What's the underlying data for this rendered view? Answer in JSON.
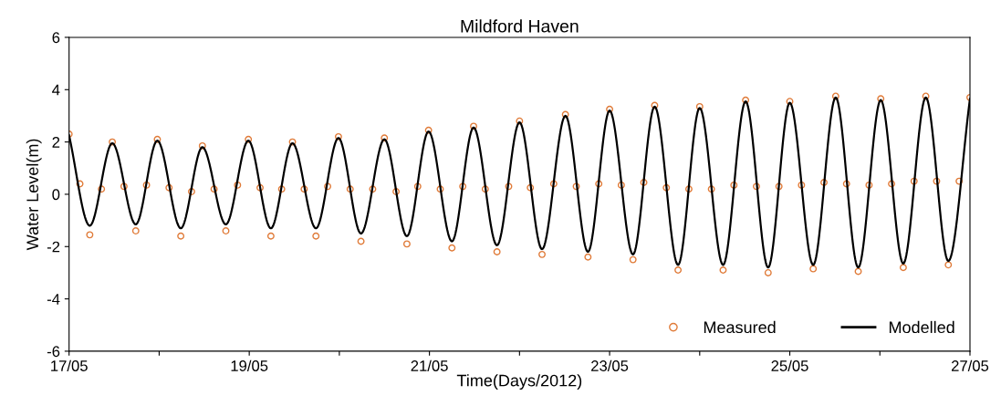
{
  "chart_data": {
    "type": "scatter",
    "title": "Mildford Haven",
    "xlabel": "Time(Days/2012)",
    "ylabel": "Water Level(m)",
    "xlim": [
      "2012-05-17",
      "2012-05-27"
    ],
    "xticks": [
      {
        "value": "2012-05-17",
        "label": "17/05"
      },
      {
        "value": "2012-05-18",
        "label": null
      },
      {
        "value": "2012-05-19",
        "label": "19/05"
      },
      {
        "value": "2012-05-20",
        "label": null
      },
      {
        "value": "2012-05-21",
        "label": "21/05"
      },
      {
        "value": "2012-05-22",
        "label": null
      },
      {
        "value": "2012-05-23",
        "label": "23/05"
      },
      {
        "value": "2012-05-24",
        "label": null
      },
      {
        "value": "2012-05-25",
        "label": "25/05"
      },
      {
        "value": "2012-05-26",
        "label": null
      },
      {
        "value": "2012-05-27",
        "label": "27/05"
      }
    ],
    "ylim": [
      -6,
      6
    ],
    "yticks": [
      -6,
      -4,
      -2,
      0,
      2,
      4,
      6
    ],
    "grid": false,
    "legend": "bottom right",
    "series": [
      {
        "name": "Measured",
        "marker": "circle",
        "color": "#e07b39",
        "x": [
          "2012-05-17T00:00",
          "2012-05-17T02:53",
          "2012-05-17T05:31",
          "2012-05-17T08:38",
          "2012-05-17T11:31",
          "2012-05-17T14:38",
          "2012-05-17T17:46",
          "2012-05-17T20:38",
          "2012-05-17T23:31",
          "2012-05-18T02:38",
          "2012-05-18T05:46",
          "2012-05-18T08:38",
          "2012-05-18T11:31",
          "2012-05-18T14:38",
          "2012-05-18T17:46",
          "2012-05-18T20:53",
          "2012-05-18T23:46",
          "2012-05-19T02:53",
          "2012-05-19T05:46",
          "2012-05-19T08:38",
          "2012-05-19T11:31",
          "2012-05-19T14:38",
          "2012-05-19T17:46",
          "2012-05-19T20:53",
          "2012-05-19T23:46",
          "2012-05-20T02:53",
          "2012-05-20T05:46",
          "2012-05-20T08:53",
          "2012-05-20T12:00",
          "2012-05-20T15:07",
          "2012-05-20T18:00",
          "2012-05-20T20:53",
          "2012-05-20T23:46",
          "2012-05-21T02:53",
          "2012-05-21T06:00",
          "2012-05-21T08:53",
          "2012-05-21T11:46",
          "2012-05-21T14:53",
          "2012-05-21T18:00",
          "2012-05-21T21:07",
          "2012-05-22T00:00",
          "2012-05-22T02:53",
          "2012-05-22T06:00",
          "2012-05-22T09:07",
          "2012-05-22T12:14",
          "2012-05-22T15:07",
          "2012-05-22T18:14",
          "2012-05-22T21:07",
          "2012-05-23T00:00",
          "2012-05-23T03:07",
          "2012-05-23T06:14",
          "2012-05-23T09:07",
          "2012-05-23T12:00",
          "2012-05-23T15:07",
          "2012-05-23T18:14",
          "2012-05-23T21:07",
          "2012-05-24T00:00",
          "2012-05-24T03:07",
          "2012-05-24T06:14",
          "2012-05-24T09:07",
          "2012-05-24T12:14",
          "2012-05-24T15:07",
          "2012-05-24T18:14",
          "2012-05-24T21:07",
          "2012-05-25T00:00",
          "2012-05-25T03:07",
          "2012-05-25T06:14",
          "2012-05-25T09:07",
          "2012-05-25T12:14",
          "2012-05-25T15:07",
          "2012-05-25T18:14",
          "2012-05-25T21:07",
          "2012-05-26T00:14",
          "2012-05-26T03:07",
          "2012-05-26T06:14",
          "2012-05-26T09:07",
          "2012-05-26T12:14",
          "2012-05-26T15:07",
          "2012-05-26T18:14",
          "2012-05-26T21:07",
          "2012-05-27T00:00"
        ],
        "values": [
          2.3,
          0.4,
          -1.55,
          0.2,
          2.0,
          0.3,
          -1.4,
          0.35,
          2.1,
          0.25,
          -1.6,
          0.1,
          1.85,
          0.2,
          -1.4,
          0.35,
          2.1,
          0.25,
          -1.6,
          0.2,
          2.0,
          0.2,
          -1.6,
          0.3,
          2.2,
          0.2,
          -1.8,
          0.2,
          2.15,
          0.1,
          -1.9,
          0.3,
          2.45,
          0.2,
          -2.05,
          0.3,
          2.6,
          0.2,
          -2.2,
          0.3,
          2.8,
          0.25,
          -2.3,
          0.4,
          3.05,
          0.3,
          -2.4,
          0.4,
          3.25,
          0.35,
          -2.5,
          0.45,
          3.4,
          0.25,
          -2.9,
          0.2,
          3.35,
          0.2,
          -2.9,
          0.35,
          3.6,
          0.3,
          -3.0,
          0.3,
          3.55,
          0.35,
          -2.85,
          0.45,
          3.75,
          0.4,
          -2.95,
          0.35,
          3.65,
          0.4,
          -2.8,
          0.5,
          3.75,
          0.5,
          -2.7,
          0.5,
          3.7
        ]
      },
      {
        "name": "Modelled",
        "type": "line",
        "marker": "none",
        "line_style": "solid",
        "color": "#000000",
        "x": [
          "2012-05-17T00:00",
          "2012-05-17T05:31",
          "2012-05-17T11:31",
          "2012-05-17T17:46",
          "2012-05-17T23:31",
          "2012-05-18T05:46",
          "2012-05-18T11:31",
          "2012-05-18T17:46",
          "2012-05-18T23:46",
          "2012-05-19T05:46",
          "2012-05-19T11:31",
          "2012-05-19T17:46",
          "2012-05-19T23:46",
          "2012-05-20T05:46",
          "2012-05-20T12:00",
          "2012-05-20T18:00",
          "2012-05-20T23:46",
          "2012-05-21T06:00",
          "2012-05-21T11:46",
          "2012-05-21T18:00",
          "2012-05-22T00:00",
          "2012-05-22T06:00",
          "2012-05-22T12:14",
          "2012-05-22T18:14",
          "2012-05-23T00:00",
          "2012-05-23T06:14",
          "2012-05-23T12:00",
          "2012-05-23T18:14",
          "2012-05-24T00:00",
          "2012-05-24T06:14",
          "2012-05-24T12:14",
          "2012-05-24T18:14",
          "2012-05-25T00:00",
          "2012-05-25T06:14",
          "2012-05-25T12:14",
          "2012-05-25T18:14",
          "2012-05-26T00:14",
          "2012-05-26T06:14",
          "2012-05-26T12:14",
          "2012-05-26T18:14",
          "2012-05-27T00:00"
        ],
        "values": [
          2.25,
          -1.2,
          1.95,
          -1.15,
          2.05,
          -1.3,
          1.8,
          -1.15,
          2.05,
          -1.3,
          1.95,
          -1.3,
          2.15,
          -1.5,
          2.1,
          -1.6,
          2.4,
          -1.8,
          2.55,
          -1.95,
          2.75,
          -2.1,
          3.0,
          -2.2,
          3.2,
          -2.3,
          3.35,
          -2.7,
          3.3,
          -2.7,
          3.55,
          -2.8,
          3.5,
          -2.7,
          3.7,
          -2.8,
          3.6,
          -2.65,
          3.7,
          -2.55,
          3.65
        ]
      }
    ]
  }
}
